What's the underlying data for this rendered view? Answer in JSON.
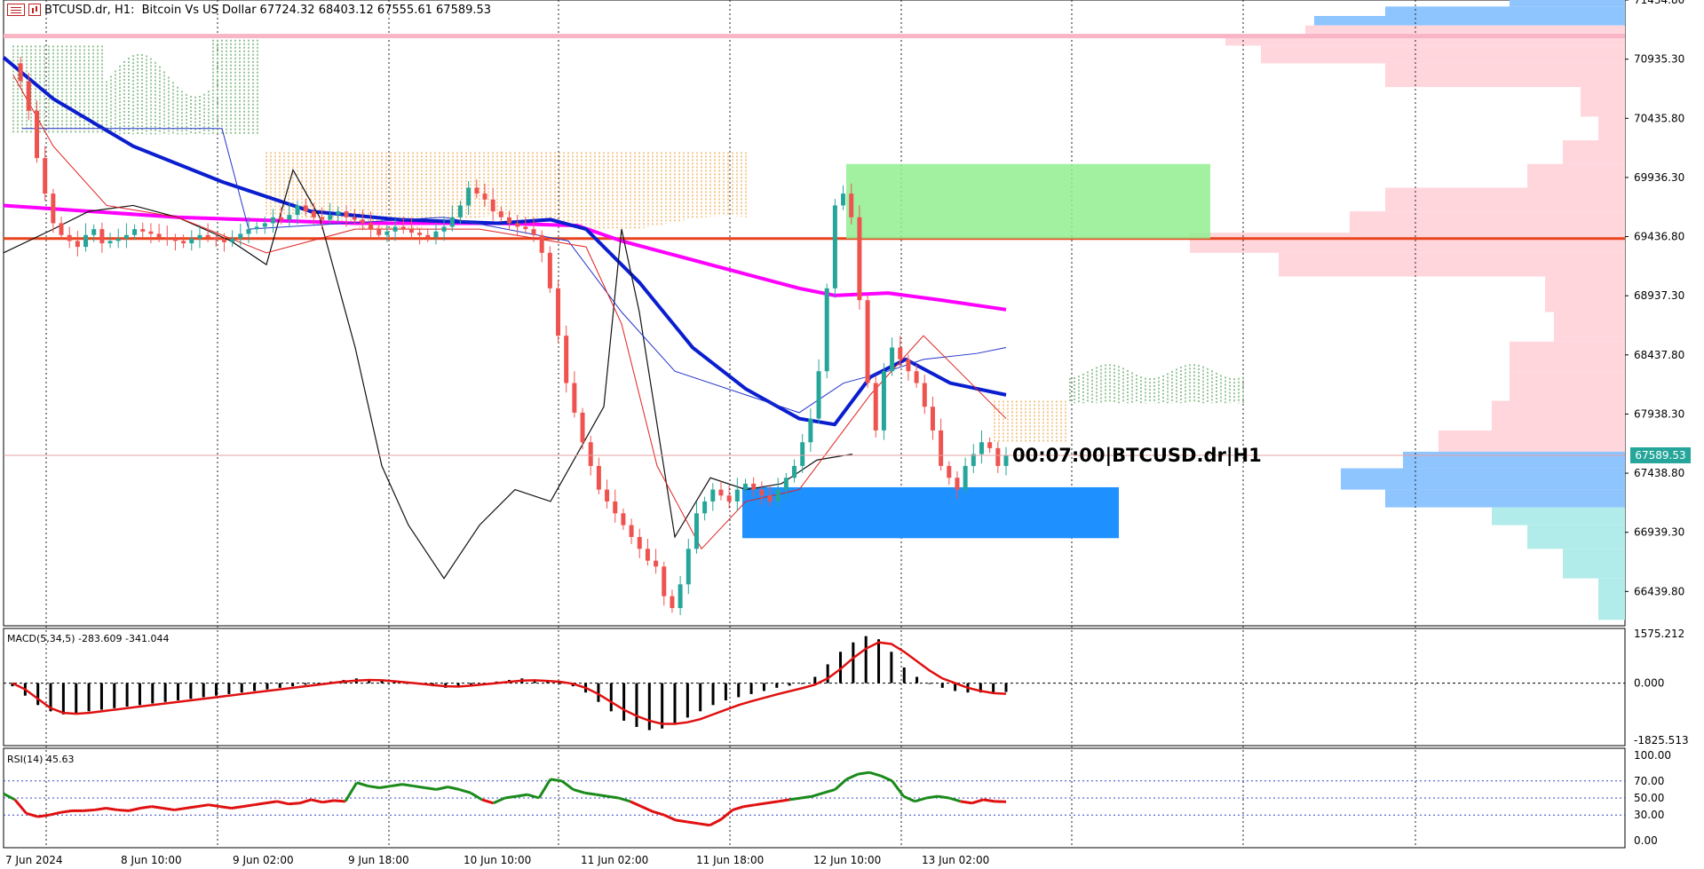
{
  "header": {
    "symbol_line": "BTCUSD.dr, H1:  Bitcoin Vs US Dollar",
    "ohlc": "67724.32 68403.12 67555.61 67589.53"
  },
  "countdown_label": "00:07:00|BTCUSD.dr|H1",
  "current_price_tag": "67589.53",
  "panes": {
    "macd_label": "MACD(5,34,5) -283.609 -341.044",
    "rsi_label": "RSI(14) 45.63"
  },
  "chart_data": [
    {
      "type": "candlestick",
      "title": "BTCUSD.dr, H1:  Bitcoin Vs US Dollar",
      "x_tick_labels": [
        "7 Jun 2024",
        "8 Jun 10:00",
        "9 Jun 02:00",
        "9 Jun 18:00",
        "10 Jun 10:00",
        "11 Jun 02:00",
        "11 Jun 18:00",
        "12 Jun 10:00",
        "13 Jun 02:00"
      ],
      "y_tick_labels": [
        "71434.80",
        "70935.30",
        "70435.80",
        "69936.30",
        "69436.80",
        "68937.30",
        "68437.80",
        "67938.30",
        "67438.80",
        "66939.30",
        "66439.80"
      ],
      "ylim": [
        66150,
        71435
      ],
      "current_price": 67589.53,
      "horizontal_lines": [
        {
          "value": 71130,
          "color": "#f7b5c5"
        },
        {
          "value": 69420,
          "color": "#e8451e"
        }
      ],
      "zones": [
        {
          "name": "supply",
          "color": "#90ee90",
          "y_range": [
            69420,
            70050
          ]
        },
        {
          "name": "demand",
          "color": "#1e90ff",
          "y_range": [
            66890,
            67320
          ]
        }
      ],
      "candles_close": [
        70900,
        70750,
        70500,
        70100,
        69800,
        69550,
        69450,
        69400,
        69350,
        69450,
        69500,
        69380,
        69400,
        69420,
        69450,
        69500,
        69480,
        69460,
        69430,
        69420,
        69400,
        69380,
        69420,
        69450,
        69430,
        69410,
        69390,
        69420,
        69460,
        69500,
        69520,
        69550,
        69600,
        69580,
        69620,
        69700,
        69650,
        69600,
        69580,
        69620,
        69650,
        69600,
        69580,
        69550,
        69500,
        69450,
        69480,
        69520,
        69500,
        69470,
        69450,
        69430,
        69480,
        69520,
        69600,
        69700,
        69850,
        69800,
        69750,
        69650,
        69600,
        69550,
        69520,
        69500,
        69450,
        69300,
        69000,
        68600,
        68200,
        67950,
        67700,
        67500,
        67300,
        67200,
        67100,
        67000,
        66900,
        66800,
        66700,
        66650,
        66400,
        66300,
        66500,
        66800,
        67100,
        67200,
        67300,
        67250,
        67200,
        67300,
        67350,
        67300,
        67250,
        67200,
        67300,
        67400,
        67500,
        67700,
        67900,
        68300,
        69000,
        69700,
        69800,
        69600,
        68900,
        68200,
        67800,
        68300,
        68500,
        68400,
        68300,
        68200,
        68000,
        67800,
        67500,
        67400,
        67300,
        67500,
        67600,
        67700,
        67650,
        67500,
        67589
      ]
    },
    {
      "type": "bar",
      "title": "MACD(5,34,5) -283.609 -341.044",
      "y_tick_labels": [
        "1575.212",
        "0.000",
        "-1825.513"
      ],
      "ylim": [
        -1825.513,
        1575.212
      ],
      "series": [
        {
          "name": "MACD",
          "values": [
            -100,
            -400,
            -700,
            -900,
            -1000,
            -950,
            -900,
            -850,
            -800,
            -750,
            -700,
            -650,
            -600,
            -550,
            -500,
            -450,
            -400,
            -350,
            -300,
            -250,
            -200,
            -150,
            -100,
            -50,
            0,
            50,
            100,
            150,
            120,
            80,
            40,
            0,
            -50,
            -100,
            -150,
            -100,
            -50,
            0,
            50,
            100,
            150,
            100,
            50,
            0,
            -100,
            -300,
            -600,
            -900,
            -1200,
            -1400,
            -1500,
            -1450,
            -1300,
            -1100,
            -900,
            -700,
            -550,
            -450,
            -350,
            -250,
            -150,
            -80,
            -20,
            200,
            600,
            1000,
            1300,
            1500,
            1400,
            1000,
            500,
            200,
            0,
            -150,
            -250,
            -300,
            -300,
            -290,
            -283.609
          ]
        },
        {
          "name": "Signal",
          "values": [
            0,
            -200,
            -500,
            -800,
            -950,
            -980,
            -950,
            -900,
            -850,
            -800,
            -750,
            -700,
            -650,
            -600,
            -550,
            -500,
            -450,
            -400,
            -350,
            -300,
            -250,
            -200,
            -150,
            -100,
            -50,
            0,
            50,
            80,
            100,
            90,
            60,
            20,
            -20,
            -60,
            -100,
            -110,
            -80,
            -40,
            0,
            40,
            80,
            90,
            70,
            40,
            -20,
            -150,
            -350,
            -600,
            -850,
            -1050,
            -1200,
            -1300,
            -1300,
            -1250,
            -1150,
            -1000,
            -850,
            -700,
            -580,
            -470,
            -360,
            -260,
            -160,
            -50,
            150,
            450,
            800,
            1100,
            1300,
            1250,
            1000,
            700,
            400,
            150,
            0,
            -150,
            -250,
            -320,
            -341.044
          ]
        }
      ]
    },
    {
      "type": "line",
      "title": "RSI(14) 45.63",
      "y_tick_labels": [
        "100.00",
        "70.00",
        "50.00",
        "30.00",
        "0.00"
      ],
      "ylim": [
        0,
        100
      ],
      "series": [
        {
          "name": "RSI",
          "values": [
            55,
            48,
            32,
            28,
            30,
            33,
            35,
            35,
            36,
            38,
            36,
            35,
            38,
            40,
            38,
            36,
            38,
            40,
            42,
            40,
            38,
            40,
            42,
            44,
            46,
            43,
            44,
            48,
            45,
            47,
            46,
            68,
            64,
            62,
            64,
            66,
            64,
            62,
            60,
            63,
            60,
            56,
            48,
            44,
            50,
            52,
            54,
            50,
            72,
            70,
            60,
            56,
            54,
            52,
            50,
            46,
            40,
            34,
            30,
            24,
            22,
            20,
            18,
            25,
            36,
            40,
            42,
            44,
            46,
            48,
            50,
            52,
            56,
            60,
            72,
            78,
            80,
            76,
            70,
            52,
            46,
            50,
            52,
            50,
            46,
            44,
            48,
            46,
            45.63
          ]
        }
      ]
    }
  ]
}
